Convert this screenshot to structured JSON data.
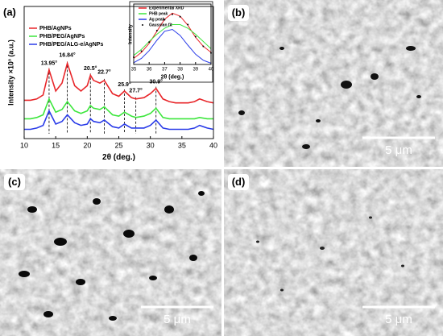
{
  "chart_data": [
    {
      "type": "line",
      "panel_label": "(a)",
      "xlabel": "2θ (deg.)",
      "ylabel": "Intensity ×10³ (a.u.)",
      "x": [
        10,
        11,
        12,
        13,
        13.95,
        15,
        16,
        16.84,
        18,
        19,
        20,
        20.5,
        21,
        22,
        22.7,
        24,
        25,
        25.9,
        27,
        27.7,
        29,
        30,
        30.9,
        32,
        33,
        34,
        35,
        36,
        37,
        37.8,
        39,
        40
      ],
      "xlim": [
        10,
        40
      ],
      "xticks": [
        10,
        15,
        20,
        25,
        30,
        35,
        40
      ],
      "ylim": [
        0,
        10
      ],
      "legend": "upper left",
      "series": [
        {
          "name": "PHB/AgNPs",
          "color": "#e8262a",
          "values": [
            2.9,
            2.9,
            3.0,
            3.3,
            5.2,
            3.6,
            4.2,
            5.7,
            4.0,
            3.6,
            4.0,
            4.8,
            4.4,
            4.2,
            4.4,
            3.4,
            3.2,
            3.6,
            3.1,
            3.0,
            3.1,
            3.4,
            3.8,
            3.0,
            2.8,
            2.7,
            2.7,
            2.7,
            2.8,
            3.0,
            2.8,
            2.7
          ]
        },
        {
          "name": "PHB/PEG/AgNPs",
          "color": "#3ce63c",
          "values": [
            1.5,
            1.5,
            1.6,
            1.8,
            3.0,
            2.0,
            2.2,
            2.8,
            2.1,
            1.9,
            2.1,
            2.5,
            2.3,
            2.2,
            2.4,
            1.8,
            1.7,
            2.0,
            1.7,
            1.6,
            1.7,
            1.9,
            2.3,
            1.6,
            1.5,
            1.5,
            1.5,
            1.5,
            1.5,
            1.6,
            1.5,
            1.5
          ]
        },
        {
          "name": "PHB/PEG/ALG-e/AgNPs",
          "color": "#2a3ce8",
          "values": [
            0.7,
            0.7,
            0.8,
            1.0,
            2.1,
            1.1,
            1.3,
            1.8,
            1.2,
            1.0,
            1.1,
            1.5,
            1.3,
            1.2,
            1.4,
            0.9,
            0.8,
            1.1,
            0.8,
            0.8,
            0.8,
            1.0,
            1.4,
            0.8,
            0.7,
            0.7,
            0.7,
            0.7,
            0.8,
            1.0,
            0.8,
            0.7
          ]
        }
      ],
      "annotations": [
        {
          "x": 13.95,
          "label": "13.95°"
        },
        {
          "x": 16.84,
          "label": "16.84°"
        },
        {
          "x": 20.5,
          "label": "20.5°"
        },
        {
          "x": 22.7,
          "label": "22.7°"
        },
        {
          "x": 25.9,
          "label": "25.9°"
        },
        {
          "x": 27.7,
          "label": "27.7°"
        },
        {
          "x": 30.9,
          "label": "30.9°"
        }
      ]
    },
    {
      "type": "line",
      "xlabel": "2θ (deg.)",
      "ylabel": "Intensity",
      "x": [
        35,
        35.5,
        36,
        36.5,
        37,
        37.5,
        38,
        38.5,
        39,
        39.5,
        40
      ],
      "xlim": [
        35,
        40
      ],
      "xticks": [
        35,
        36,
        37,
        38,
        39,
        40
      ],
      "ylim": [
        0,
        10
      ],
      "legend": "upper left",
      "series": [
        {
          "name": "Experimental XRD",
          "color": "#e8262a",
          "values": [
            1,
            2,
            3.5,
            5.5,
            7.5,
            8.5,
            8,
            6.5,
            4.5,
            3,
            2
          ]
        },
        {
          "name": "PHB peak",
          "color": "#3ce63c",
          "values": [
            1.5,
            2.5,
            3.8,
            5,
            6,
            6.6,
            6.6,
            6,
            5,
            3.8,
            2.6
          ]
        },
        {
          "name": "Ag peak",
          "color": "#2a3ce8",
          "values": [
            0.3,
            1,
            2.3,
            4,
            5.5,
            5.8,
            4.8,
            3.2,
            1.7,
            0.7,
            0.2
          ]
        },
        {
          "name": "Gaussian fit",
          "color": "#000000",
          "style": "dots",
          "values": [
            1.2,
            2.2,
            3.7,
            5.6,
            7.4,
            8.3,
            7.9,
            6.6,
            4.6,
            3.0,
            1.9
          ]
        }
      ]
    }
  ],
  "images": [
    {
      "label": "(b)",
      "scale_bar": "5 μm"
    },
    {
      "label": "(c)",
      "scale_bar": "5 μm"
    },
    {
      "label": "(d)",
      "scale_bar": "5 μm"
    }
  ]
}
